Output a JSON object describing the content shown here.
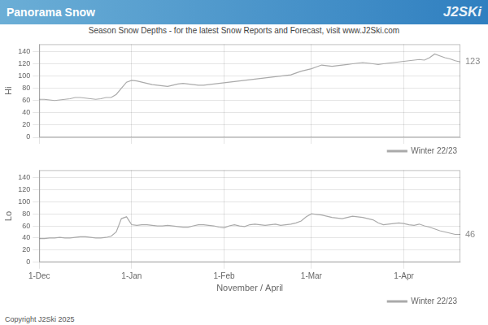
{
  "chart_data": [
    {
      "type": "line",
      "title": "Panorama Snow",
      "subtitle": "Season Snow Depths - for the latest Snow Reports and Forecast, visit www.J2Ski.com",
      "ylabel": "Hi",
      "categories": [
        "1-Dec",
        null,
        null,
        null,
        null,
        null,
        null,
        null,
        null,
        null,
        null,
        null,
        null,
        null,
        null,
        null,
        null,
        null,
        "1-Jan",
        null,
        null,
        null,
        null,
        null,
        null,
        null,
        null,
        null,
        null,
        null,
        null,
        null,
        null,
        null,
        null,
        null,
        "1-Feb",
        null,
        null,
        null,
        null,
        null,
        null,
        null,
        null,
        null,
        null,
        null,
        null,
        null,
        null,
        null,
        null,
        "1-Mar",
        null,
        null,
        null,
        null,
        null,
        null,
        null,
        null,
        null,
        null,
        null,
        null,
        null,
        null,
        null,
        null,
        null,
        "1-Apr",
        null,
        null,
        null,
        null,
        null,
        null,
        null,
        null,
        null,
        null,
        null
      ],
      "series": [
        {
          "name": "Winter 22/23",
          "color": "#aaaaaa",
          "values": [
            62,
            62,
            61,
            60,
            61,
            62,
            63,
            65,
            65,
            64,
            63,
            62,
            63,
            65,
            65,
            70,
            80,
            90,
            93,
            92,
            90,
            88,
            86,
            85,
            84,
            83,
            85,
            87,
            88,
            87,
            86,
            85,
            85,
            86,
            87,
            88,
            89,
            90,
            91,
            92,
            93,
            94,
            95,
            96,
            97,
            98,
            99,
            100,
            101,
            102,
            105,
            108,
            110,
            112,
            115,
            118,
            117,
            116,
            117,
            118,
            119,
            120,
            121,
            122,
            121,
            120,
            119,
            120,
            121,
            122,
            123,
            124,
            125,
            126,
            127,
            126,
            130,
            136,
            133,
            130,
            128,
            125,
            123
          ]
        }
      ],
      "ylim": [
        0,
        152
      ],
      "yticks": [
        0,
        20,
        40,
        60,
        80,
        100,
        120,
        140
      ],
      "grid": true,
      "legend": "lower right",
      "tick_labels": "y",
      "annotations": [
        {
          "text": "J2SKi"
        },
        {
          "text": "123",
          "y": 123
        }
      ]
    },
    {
      "type": "line",
      "xlabel": "November / April",
      "ylabel": "Lo",
      "categories": [
        "1-Dec",
        null,
        null,
        null,
        null,
        null,
        null,
        null,
        null,
        null,
        null,
        null,
        null,
        null,
        null,
        null,
        null,
        null,
        "1-Jan",
        null,
        null,
        null,
        null,
        null,
        null,
        null,
        null,
        null,
        null,
        null,
        null,
        null,
        null,
        null,
        null,
        null,
        "1-Feb",
        null,
        null,
        null,
        null,
        null,
        null,
        null,
        null,
        null,
        null,
        null,
        null,
        null,
        null,
        null,
        null,
        "1-Mar",
        null,
        null,
        null,
        null,
        null,
        null,
        null,
        null,
        null,
        null,
        null,
        null,
        null,
        null,
        null,
        null,
        null,
        "1-Apr",
        null,
        null,
        null,
        null,
        null,
        null,
        null,
        null,
        null,
        null,
        null
      ],
      "series": [
        {
          "name": "Winter 22/23",
          "color": "#aaaaaa",
          "values": [
            39,
            39,
            40,
            40,
            41,
            40,
            40,
            41,
            42,
            42,
            41,
            40,
            40,
            41,
            43,
            50,
            72,
            75,
            62,
            61,
            62,
            62,
            61,
            60,
            60,
            61,
            60,
            59,
            58,
            58,
            60,
            62,
            62,
            61,
            60,
            58,
            57,
            60,
            62,
            60,
            59,
            62,
            63,
            62,
            61,
            62,
            63,
            61,
            62,
            63,
            65,
            68,
            75,
            80,
            79,
            78,
            76,
            74,
            73,
            72,
            74,
            76,
            75,
            74,
            72,
            70,
            65,
            62,
            63,
            64,
            65,
            64,
            62,
            61,
            63,
            60,
            58,
            55,
            52,
            50,
            48,
            46,
            46
          ]
        }
      ],
      "ylim": [
        0,
        152
      ],
      "yticks": [
        0,
        20,
        40,
        60,
        80,
        100,
        120,
        140
      ],
      "grid": true,
      "legend": "lower right",
      "annotations": [
        {
          "text": "46",
          "y": 46
        },
        {
          "text": "Copyright J2Ski 2025"
        }
      ]
    }
  ]
}
